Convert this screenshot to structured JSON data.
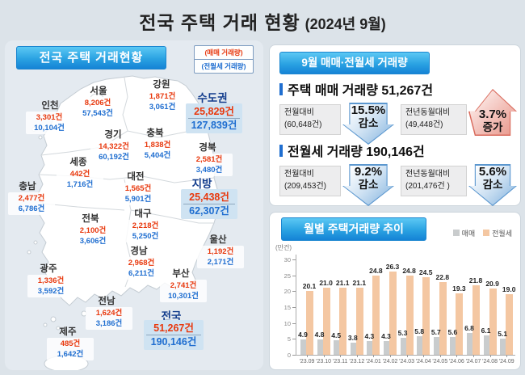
{
  "title": {
    "main": "전국 주택 거래 현황",
    "sub": "(2024년 9월)"
  },
  "colors": {
    "sale_red": "#e8380d",
    "rent_blue": "#1f6ed0",
    "navy": "#123c8c",
    "banner_blue_top": "#5cc8f4",
    "banner_blue_bottom": "#1583d6",
    "bar_gray": "#c9cccd",
    "bar_orange": "#f4c7a2"
  },
  "map_panel": {
    "banner": "전국 주택 거래현황",
    "legend": {
      "sale": "(매매 거래량)",
      "rent": "(전월세 거래량)"
    },
    "regions": [
      {
        "id": "seoul",
        "name": "서울",
        "sale": "8,206건",
        "rent": "57,543건"
      },
      {
        "id": "incheon",
        "name": "인천",
        "sale": "3,301건",
        "rent": "10,104건"
      },
      {
        "id": "gangwon",
        "name": "강원",
        "sale": "1,871건",
        "rent": "3,061건"
      },
      {
        "id": "gyeonggi",
        "name": "경기",
        "sale": "14,322건",
        "rent": "60,192건"
      },
      {
        "id": "chungbuk",
        "name": "충북",
        "sale": "1,838건",
        "rent": "5,404건"
      },
      {
        "id": "gyeongbuk",
        "name": "경북",
        "sale": "2,581건",
        "rent": "3,480건"
      },
      {
        "id": "sejong",
        "name": "세종",
        "sale": "442건",
        "rent": "1,716건"
      },
      {
        "id": "daejeon",
        "name": "대전",
        "sale": "1,565건",
        "rent": "5,901건"
      },
      {
        "id": "chungnam",
        "name": "충남",
        "sale": "2,477건",
        "rent": "6,786건"
      },
      {
        "id": "jeonbuk",
        "name": "전북",
        "sale": "2,100건",
        "rent": "3,606건"
      },
      {
        "id": "daegu",
        "name": "대구",
        "sale": "2,218건",
        "rent": "5,250건"
      },
      {
        "id": "ulsan",
        "name": "울산",
        "sale": "1,192건",
        "rent": "2,171건"
      },
      {
        "id": "gyeongnam",
        "name": "경남",
        "sale": "2,968건",
        "rent": "6,211건"
      },
      {
        "id": "gwangju",
        "name": "광주",
        "sale": "1,336건",
        "rent": "3,592건"
      },
      {
        "id": "busan",
        "name": "부산",
        "sale": "2,741건",
        "rent": "10,301건"
      },
      {
        "id": "jeonnam",
        "name": "전남",
        "sale": "1,624건",
        "rent": "3,186건"
      },
      {
        "id": "jeju",
        "name": "제주",
        "sale": "485건",
        "rent": "1,642건"
      }
    ],
    "aggregates": [
      {
        "id": "sudogwon",
        "name": "수도권",
        "sale": "25,829건",
        "rent": "127,839건"
      },
      {
        "id": "jibang",
        "name": "지방",
        "sale": "25,438건",
        "rent": "62,307건"
      },
      {
        "id": "jeonguk",
        "name": "전국",
        "sale": "51,267건",
        "rent": "190,146건"
      }
    ]
  },
  "volume_panel": {
    "banner": "9월 매매·전월세 거래량",
    "sections": [
      {
        "title": "주택 매매 거래량 51,267건",
        "stats": [
          {
            "label": "전월대비",
            "base": "(60,648건)",
            "pct": "15.5%",
            "direction_label": "감소",
            "direction": "down"
          },
          {
            "label": "전년동월대비",
            "base": "(49,448건)",
            "pct": "3.7%",
            "direction_label": "증가",
            "direction": "up"
          }
        ]
      },
      {
        "title": "전월세 거래량 190,146건",
        "stats": [
          {
            "label": "전월대비",
            "base": "(209,453건)",
            "pct": "9.2%",
            "direction_label": "감소",
            "direction": "down"
          },
          {
            "label": "전년동월대비",
            "base": "(201,476건 )",
            "pct": "5.6%",
            "direction_label": "감소",
            "direction": "down"
          }
        ]
      }
    ]
  },
  "chart_panel": {
    "banner": "월별 주택거래량 추이",
    "unit_label": "(만건)"
  },
  "chart_data": {
    "type": "bar",
    "title": "월별 주택거래량 추이",
    "unit": "만건",
    "categories": [
      "'23.09",
      "'23.10",
      "'23.11",
      "'23.12",
      "'24.01",
      "'24.02",
      "'24.03",
      "'24.04",
      "'24.05",
      "'24.06",
      "'24.07",
      "'24.08",
      "'24.09"
    ],
    "series": [
      {
        "name": "매매",
        "color": "#c9cccd",
        "values": [
          4.9,
          4.8,
          4.5,
          3.8,
          4.3,
          4.3,
          5.3,
          5.8,
          5.7,
          5.6,
          6.8,
          6.1,
          5.1
        ]
      },
      {
        "name": "전월세",
        "color": "#f4c7a2",
        "values": [
          20.1,
          21.0,
          21.1,
          21.1,
          24.8,
          26.3,
          24.8,
          24.5,
          22.8,
          19.3,
          21.8,
          20.9,
          19.0
        ]
      }
    ],
    "ylim": [
      0,
      30
    ],
    "yticks": [
      0,
      5,
      10,
      15,
      20,
      25,
      30
    ],
    "grid": false,
    "legend_position": "top-right",
    "value_labels": true
  }
}
